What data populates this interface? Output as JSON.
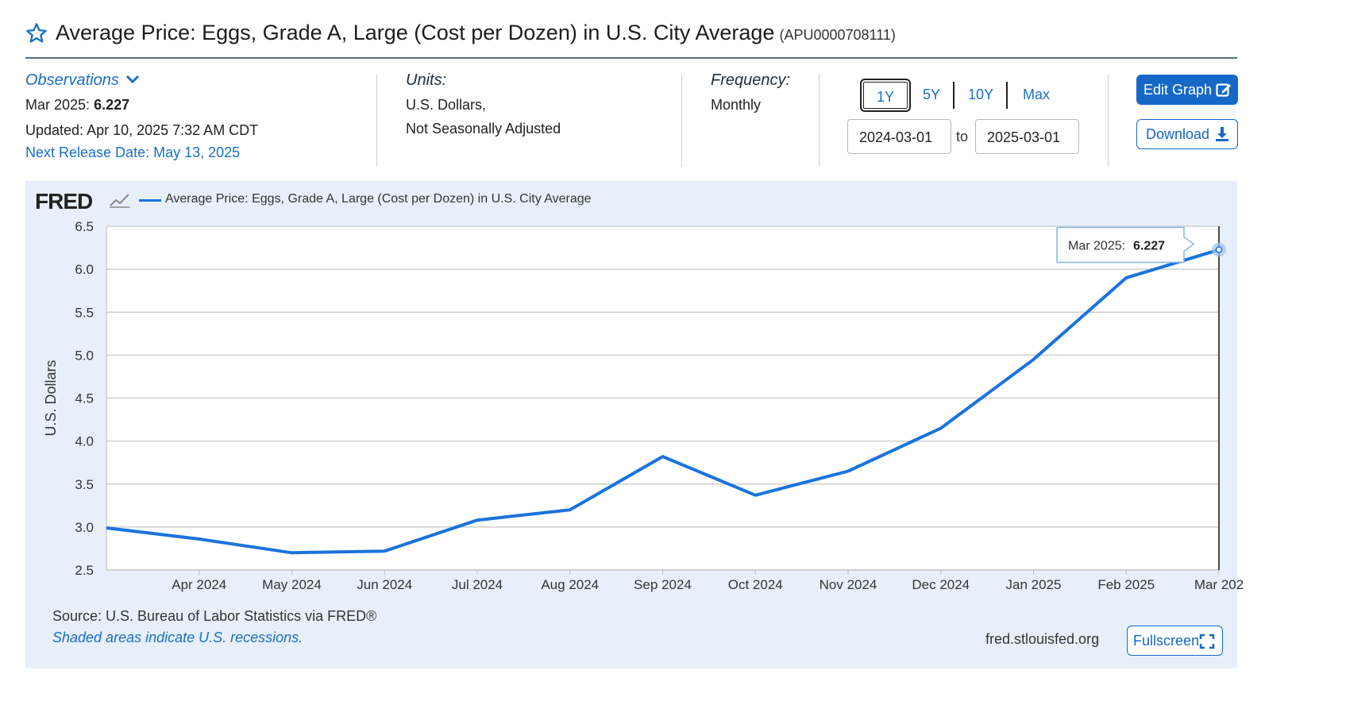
{
  "header": {
    "title": "Average Price: Eggs, Grade A, Large (Cost per Dozen) in U.S. City Average",
    "series_id": "(APU0000708111)"
  },
  "observations": {
    "label": "Observations",
    "period": "Mar 2025:",
    "value": "6.227",
    "updated": "Updated: Apr 10, 2025 7:32 AM CDT",
    "next_release": "Next Release Date: May 13, 2025"
  },
  "units": {
    "label": "Units:",
    "line1": "U.S. Dollars,",
    "line2": "Not Seasonally Adjusted"
  },
  "frequency": {
    "label": "Frequency:",
    "value": "Monthly"
  },
  "range": {
    "buttons": [
      "1Y",
      "5Y",
      "10Y",
      "Max"
    ],
    "active": "1Y",
    "start": "2024-03-01",
    "to": "to",
    "end": "2025-03-01"
  },
  "actions": {
    "edit": "Edit Graph",
    "download": "Download",
    "fullscreen": "Fullscreen"
  },
  "chart_panel": {
    "logo": "FRED",
    "legend": "Average Price: Eggs, Grade A, Large (Cost per Dozen) in U.S. City Average",
    "source": "Source: U.S. Bureau of Labor Statistics via FRED®",
    "recessions": "Shaded areas indicate U.S. recessions.",
    "site": "fred.stlouisfed.org",
    "tooltip_label": "Mar 2025:",
    "tooltip_value": "6.227"
  },
  "colors": {
    "accent": "#1668c7",
    "series": "#1a73dd",
    "panel_bg": "#e7f0fa"
  },
  "icons": {
    "star": "star-icon",
    "chevron": "chevron-down-icon",
    "edit": "edit-icon",
    "download": "download-icon",
    "fullscreen": "fullscreen-icon",
    "fred_chart": "fred-chart-icon"
  },
  "chart_data": {
    "type": "line",
    "x": [
      "2024-03",
      "2024-04",
      "2024-05",
      "2024-06",
      "2024-07",
      "2024-08",
      "2024-09",
      "2024-10",
      "2024-11",
      "2024-12",
      "2025-01",
      "2025-02",
      "2025-03"
    ],
    "x_tick_labels": [
      "Apr 2024",
      "May 2024",
      "Jun 2024",
      "Jul 2024",
      "Aug 2024",
      "Sep 2024",
      "Oct 2024",
      "Nov 2024",
      "Dec 2024",
      "Jan 2025",
      "Feb 2025",
      "Mar 202"
    ],
    "series": [
      {
        "name": "Average Price: Eggs, Grade A, Large (Cost per Dozen) in U.S. City Average",
        "values": [
          2.99,
          2.86,
          2.7,
          2.72,
          3.08,
          3.2,
          3.82,
          3.37,
          3.65,
          4.15,
          4.95,
          5.9,
          6.227
        ]
      }
    ],
    "ylabel": "U.S. Dollars",
    "xlabel": "",
    "ylim": [
      2.5,
      6.5
    ],
    "yticks": [
      "2.5",
      "3.0",
      "3.5",
      "4.0",
      "4.5",
      "5.0",
      "5.5",
      "6.0",
      "6.5"
    ],
    "grid": true,
    "legend": "top-left"
  }
}
